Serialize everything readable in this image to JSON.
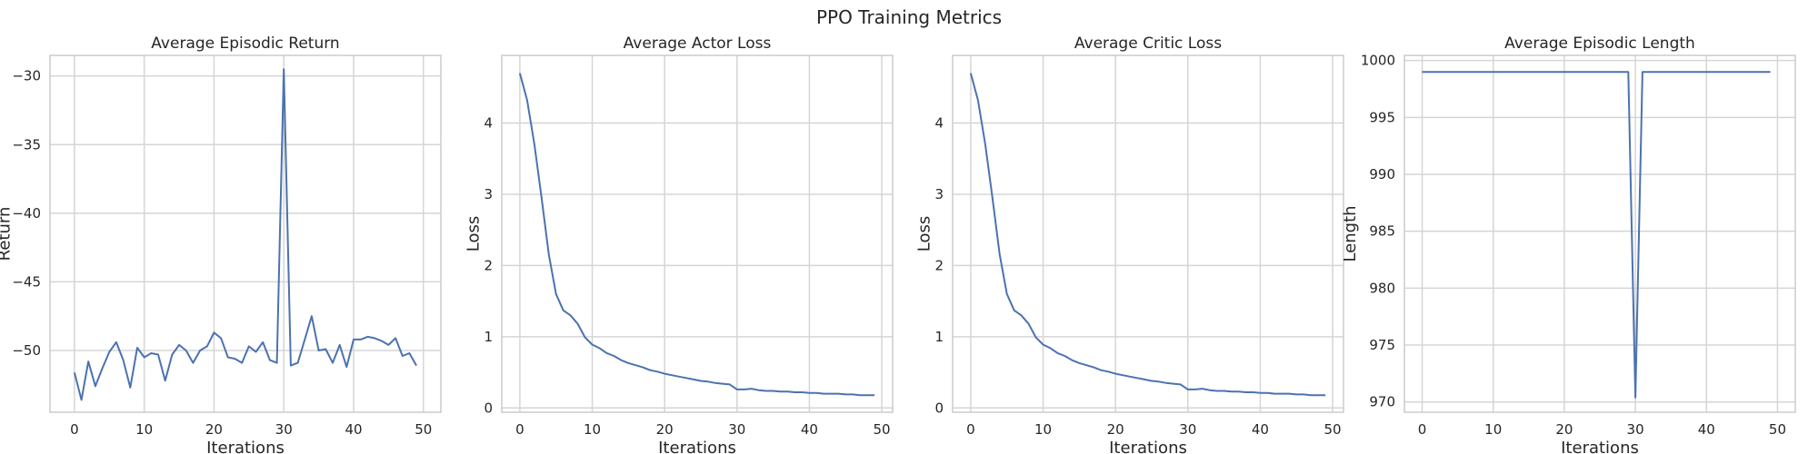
{
  "figure": {
    "title": "PPO Training Metrics"
  },
  "chart_data": [
    {
      "type": "line",
      "title": "Average Episodic Return",
      "xlabel": "Iterations",
      "ylabel": "Return",
      "xlim": [
        -3.5,
        52.5
      ],
      "ylim": [
        -54.5,
        -28.5
      ],
      "xticks": [
        0,
        10,
        20,
        30,
        40,
        50
      ],
      "xtick_labels": [
        "0",
        "10",
        "20",
        "30",
        "40",
        "50"
      ],
      "yticks": [
        -30,
        -35,
        -40,
        -45,
        -50
      ],
      "ytick_labels": [
        "−30",
        "−35",
        "−40",
        "−45",
        "−50"
      ],
      "grid": true,
      "color": "#4c72b0",
      "x": [
        0,
        1,
        2,
        3,
        4,
        5,
        6,
        7,
        8,
        9,
        10,
        11,
        12,
        13,
        14,
        15,
        16,
        17,
        18,
        19,
        20,
        21,
        22,
        23,
        24,
        25,
        26,
        27,
        28,
        29,
        30,
        31,
        32,
        33,
        34,
        35,
        36,
        37,
        38,
        39,
        40,
        41,
        42,
        43,
        44,
        45,
        46,
        47,
        48,
        49
      ],
      "y": [
        -51.6,
        -53.6,
        -50.8,
        -52.6,
        -51.3,
        -50.1,
        -49.4,
        -50.7,
        -52.7,
        -49.8,
        -50.5,
        -50.2,
        -50.3,
        -52.2,
        -50.3,
        -49.6,
        -50.0,
        -50.9,
        -50.0,
        -49.7,
        -48.7,
        -49.1,
        -50.5,
        -50.6,
        -50.9,
        -49.7,
        -50.1,
        -49.4,
        -50.7,
        -50.9,
        -29.5,
        -51.1,
        -50.9,
        -49.2,
        -47.5,
        -50.0,
        -49.9,
        -50.9,
        -49.6,
        -51.2,
        -49.2,
        -49.2,
        -49.0,
        -49.1,
        -49.3,
        -49.6,
        -49.1,
        -50.4,
        -50.2,
        -51.1
      ]
    },
    {
      "type": "line",
      "title": "Average Actor Loss",
      "xlabel": "Iterations",
      "ylabel": "Loss",
      "xlim": [
        -2.5,
        51.5
      ],
      "ylim": [
        -0.06,
        4.95
      ],
      "xticks": [
        0,
        10,
        20,
        30,
        40,
        50
      ],
      "xtick_labels": [
        "0",
        "10",
        "20",
        "30",
        "40",
        "50"
      ],
      "yticks": [
        0,
        1,
        2,
        3,
        4
      ],
      "ytick_labels": [
        "0",
        "1",
        "2",
        "3",
        "4"
      ],
      "grid": true,
      "color": "#4c72b0",
      "x": [
        0,
        1,
        2,
        3,
        4,
        5,
        6,
        7,
        8,
        9,
        10,
        11,
        12,
        13,
        14,
        15,
        16,
        17,
        18,
        19,
        20,
        21,
        22,
        23,
        24,
        25,
        26,
        27,
        28,
        29,
        30,
        31,
        32,
        33,
        34,
        35,
        36,
        37,
        38,
        39,
        40,
        41,
        42,
        43,
        44,
        45,
        46,
        47,
        48,
        49
      ],
      "y": [
        4.7,
        4.32,
        3.71,
        2.95,
        2.15,
        1.6,
        1.37,
        1.3,
        1.18,
        0.99,
        0.89,
        0.84,
        0.77,
        0.73,
        0.67,
        0.63,
        0.6,
        0.57,
        0.53,
        0.51,
        0.48,
        0.46,
        0.44,
        0.42,
        0.4,
        0.38,
        0.37,
        0.35,
        0.34,
        0.33,
        0.26,
        0.26,
        0.27,
        0.25,
        0.24,
        0.24,
        0.23,
        0.23,
        0.22,
        0.22,
        0.21,
        0.21,
        0.2,
        0.2,
        0.2,
        0.19,
        0.19,
        0.18,
        0.18,
        0.18
      ]
    },
    {
      "type": "line",
      "title": "Average Critic Loss",
      "xlabel": "Iterations",
      "ylabel": "Loss",
      "xlim": [
        -2.5,
        51.5
      ],
      "ylim": [
        -0.06,
        4.95
      ],
      "xticks": [
        0,
        10,
        20,
        30,
        40,
        50
      ],
      "xtick_labels": [
        "0",
        "10",
        "20",
        "30",
        "40",
        "50"
      ],
      "yticks": [
        0,
        1,
        2,
        3,
        4
      ],
      "ytick_labels": [
        "0",
        "1",
        "2",
        "3",
        "4"
      ],
      "grid": true,
      "color": "#4c72b0",
      "x": [
        0,
        1,
        2,
        3,
        4,
        5,
        6,
        7,
        8,
        9,
        10,
        11,
        12,
        13,
        14,
        15,
        16,
        17,
        18,
        19,
        20,
        21,
        22,
        23,
        24,
        25,
        26,
        27,
        28,
        29,
        30,
        31,
        32,
        33,
        34,
        35,
        36,
        37,
        38,
        39,
        40,
        41,
        42,
        43,
        44,
        45,
        46,
        47,
        48,
        49
      ],
      "y": [
        4.7,
        4.32,
        3.71,
        2.95,
        2.15,
        1.6,
        1.37,
        1.3,
        1.18,
        0.99,
        0.89,
        0.84,
        0.77,
        0.73,
        0.67,
        0.63,
        0.6,
        0.57,
        0.53,
        0.51,
        0.48,
        0.46,
        0.44,
        0.42,
        0.4,
        0.38,
        0.37,
        0.35,
        0.34,
        0.33,
        0.26,
        0.26,
        0.27,
        0.25,
        0.24,
        0.24,
        0.23,
        0.23,
        0.22,
        0.22,
        0.21,
        0.21,
        0.2,
        0.2,
        0.2,
        0.19,
        0.19,
        0.18,
        0.18,
        0.18
      ]
    },
    {
      "type": "line",
      "title": "Average Episodic Length",
      "xlabel": "Iterations",
      "ylabel": "Length",
      "xlim": [
        -2.5,
        52.5
      ],
      "ylim": [
        969.1,
        1000.45
      ],
      "xticks": [
        0,
        10,
        20,
        30,
        40,
        50
      ],
      "xtick_labels": [
        "0",
        "10",
        "20",
        "30",
        "40",
        "50"
      ],
      "yticks": [
        1000,
        995,
        990,
        985,
        980,
        975,
        970
      ],
      "ytick_labels": [
        "1000",
        "995",
        "990",
        "985",
        "980",
        "975",
        "970"
      ],
      "grid": true,
      "color": "#4c72b0",
      "x": [
        0,
        1,
        2,
        3,
        4,
        5,
        6,
        7,
        8,
        9,
        10,
        11,
        12,
        13,
        14,
        15,
        16,
        17,
        18,
        19,
        20,
        21,
        22,
        23,
        24,
        25,
        26,
        27,
        28,
        29,
        30,
        31,
        32,
        33,
        34,
        35,
        36,
        37,
        38,
        39,
        40,
        41,
        42,
        43,
        44,
        45,
        46,
        47,
        48,
        49
      ],
      "y": [
        999,
        999,
        999,
        999,
        999,
        999,
        999,
        999,
        999,
        999,
        999,
        999,
        999,
        999,
        999,
        999,
        999,
        999,
        999,
        999,
        999,
        999,
        999,
        999,
        999,
        999,
        999,
        999,
        999,
        999,
        970.4,
        999,
        999,
        999,
        999,
        999,
        999,
        999,
        999,
        999,
        999,
        999,
        999,
        999,
        999,
        999,
        999,
        999,
        999,
        999
      ]
    }
  ]
}
